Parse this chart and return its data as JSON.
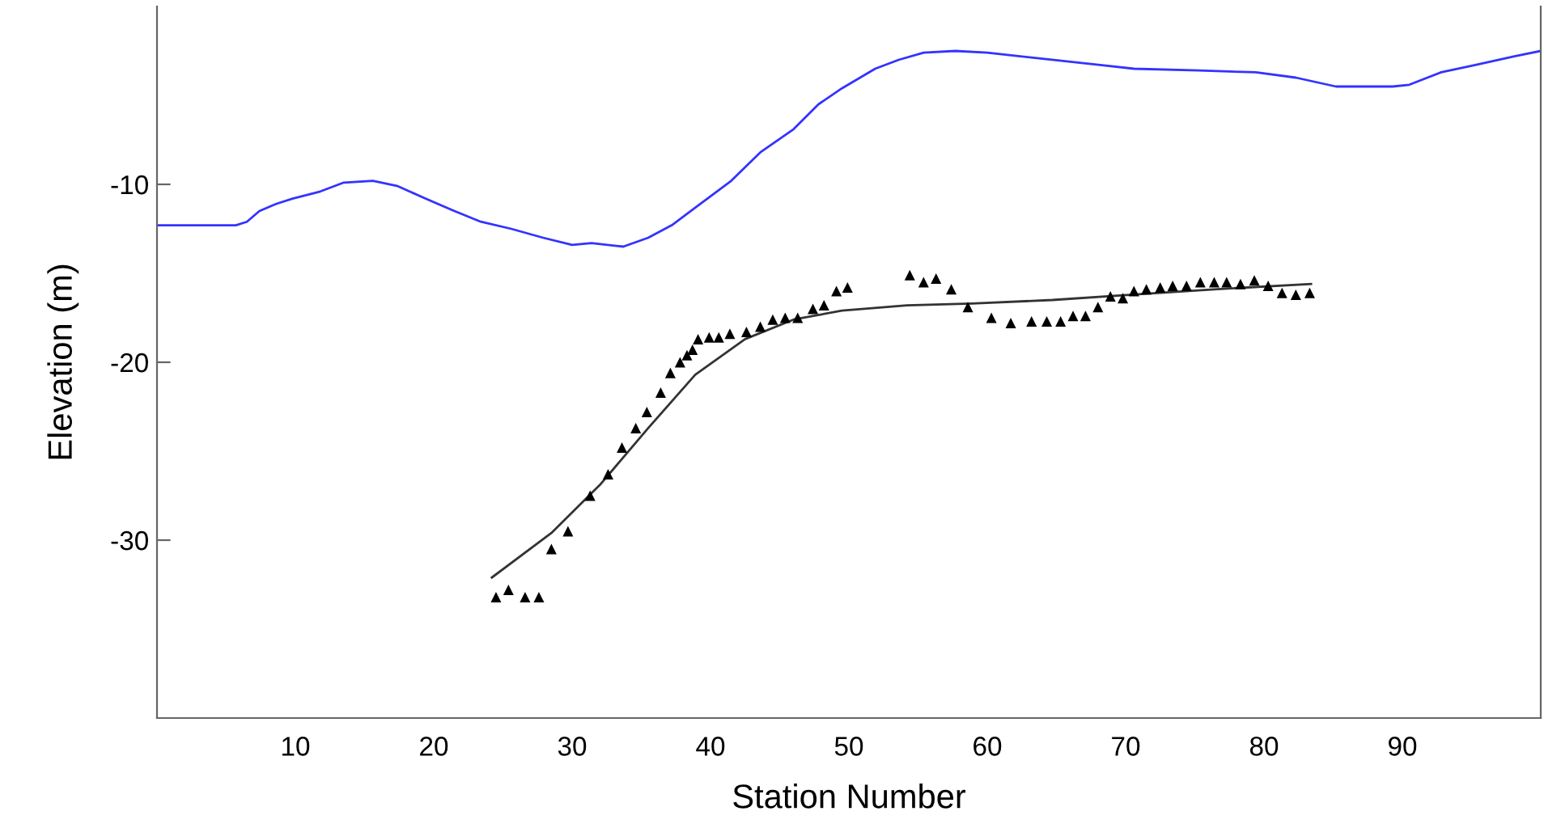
{
  "chart_data": {
    "type": "line",
    "xlabel": "Station Number",
    "ylabel": "Elevation (m)",
    "xlim": [
      0,
      100
    ],
    "ylim": [
      -40,
      0
    ],
    "xticks": [
      10,
      20,
      30,
      40,
      50,
      60,
      70,
      80,
      90
    ],
    "yticks": [
      -10,
      -20,
      -30
    ],
    "grid": false,
    "legend": false,
    "series": [
      {
        "color": "#3333ff",
        "marker": "none",
        "x": [
          0,
          5.7,
          6.5,
          7.4,
          8.6,
          9.8,
          11.8,
          13.5,
          15.6,
          17.4,
          19.4,
          21.5,
          23.4,
          25.6,
          27.9,
          30.0,
          31.4,
          33.7,
          35.5,
          37.2,
          39.6,
          41.5,
          43.6,
          46.0,
          47.8,
          49.5,
          51.9,
          53.6,
          55.4,
          57.7,
          60.0,
          63.6,
          68.3,
          70.6,
          75.3,
          79.4,
          82.3,
          85.2,
          87.5,
          89.3,
          90.5,
          92.8,
          95.2,
          98.1,
          100
        ],
        "values": [
          -12.3,
          -12.3,
          -12.1,
          -11.5,
          -11.1,
          -10.8,
          -10.4,
          -9.9,
          -9.8,
          -10.1,
          -10.8,
          -11.5,
          -12.1,
          -12.5,
          -13.0,
          -13.4,
          -13.3,
          -13.5,
          -13.0,
          -12.3,
          -10.9,
          -9.8,
          -8.2,
          -6.9,
          -5.5,
          -4.6,
          -3.5,
          -3.0,
          -2.6,
          -2.5,
          -2.6,
          -2.9,
          -3.3,
          -3.5,
          -3.6,
          -3.7,
          -4.0,
          -4.5,
          -4.5,
          -4.5,
          -4.4,
          -3.7,
          -3.3,
          -2.8,
          -2.5
        ]
      },
      {
        "type": "scatter",
        "color": "#000000",
        "marker": "triangle",
        "x": [
          24.5,
          25.4,
          26.6,
          27.6,
          28.5,
          29.7,
          31.3,
          32.6,
          33.6,
          34.6,
          35.4,
          36.4,
          37.1,
          37.8,
          38.3,
          38.7,
          39.1,
          39.9,
          40.6,
          41.4,
          42.6,
          43.6,
          44.5,
          45.4,
          46.3,
          47.4,
          48.2,
          49.1,
          49.9,
          54.4,
          55.4,
          56.3,
          57.4,
          58.6,
          60.3,
          61.7,
          63.2,
          64.3,
          65.3,
          66.2,
          67.1,
          68.0,
          68.9,
          69.8,
          70.6,
          71.5,
          72.5,
          73.4,
          74.4,
          75.4,
          76.4,
          77.3,
          78.3,
          79.3,
          80.3,
          81.3,
          82.3,
          83.3
        ],
        "values": [
          -33.2,
          -32.8,
          -33.2,
          -33.2,
          -30.5,
          -29.5,
          -27.5,
          -26.3,
          -24.8,
          -23.7,
          -22.8,
          -21.7,
          -20.6,
          -20.0,
          -19.6,
          -19.3,
          -18.7,
          -18.6,
          -18.6,
          -18.4,
          -18.3,
          -18.0,
          -17.6,
          -17.5,
          -17.5,
          -17.0,
          -16.8,
          -16.0,
          -15.8,
          -15.1,
          -15.5,
          -15.3,
          -15.9,
          -16.9,
          -17.5,
          -17.8,
          -17.7,
          -17.7,
          -17.7,
          -17.4,
          -17.4,
          -16.9,
          -16.3,
          -16.4,
          -16.0,
          -15.9,
          -15.8,
          -15.7,
          -15.7,
          -15.5,
          -15.5,
          -15.5,
          -15.6,
          -15.4,
          -15.7,
          -16.1,
          -16.2,
          -16.1
        ]
      },
      {
        "color": "#333333",
        "marker": "none",
        "x": [
          24.2,
          28.5,
          32.0,
          35.5,
          38.9,
          42.5,
          46.0,
          49.5,
          54.2,
          58.9,
          64.7,
          70.5,
          76.4,
          83.4
        ],
        "values": [
          -32.1,
          -29.6,
          -26.9,
          -23.7,
          -20.7,
          -18.7,
          -17.6,
          -17.1,
          -16.8,
          -16.7,
          -16.5,
          -16.2,
          -15.9,
          -15.6
        ]
      }
    ]
  }
}
